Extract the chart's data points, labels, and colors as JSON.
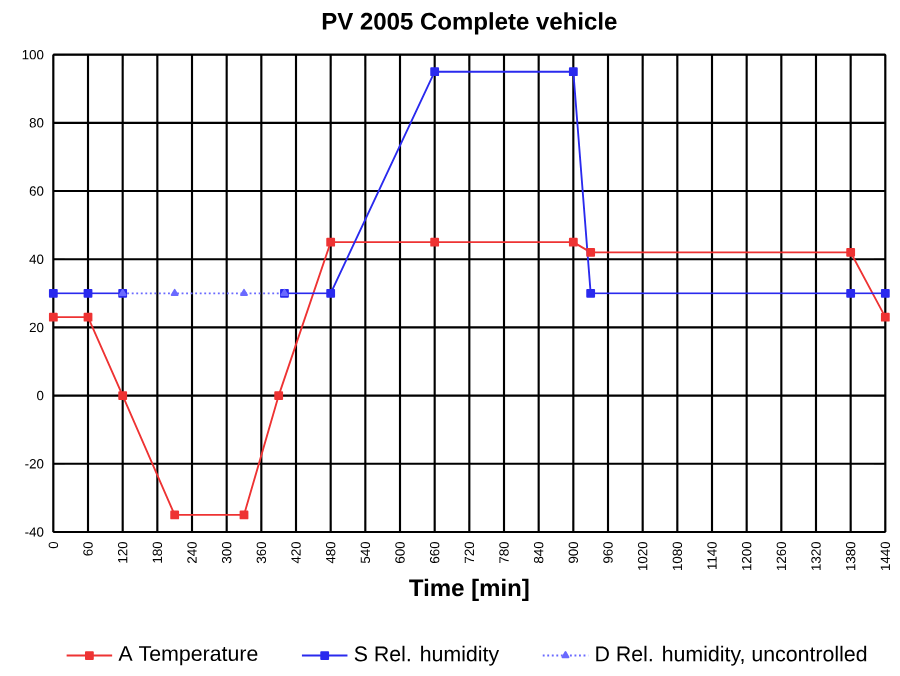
{
  "chart_data": {
    "type": "line",
    "title": "PV 2005 Complete vehicle",
    "xlabel": "Time [min]",
    "xlim": [
      0,
      1440
    ],
    "xticks": [
      0,
      60,
      120,
      180,
      240,
      300,
      360,
      420,
      480,
      540,
      600,
      660,
      720,
      780,
      840,
      900,
      960,
      1020,
      1080,
      1140,
      1200,
      1260,
      1320,
      1380,
      1440
    ],
    "ylim": [
      -40,
      100
    ],
    "yticks": [
      -40,
      -20,
      0,
      20,
      40,
      60,
      80,
      100
    ],
    "grid": true,
    "legend": "bottom",
    "series": [
      {
        "name": "A Temperature",
        "color": "#ee3333",
        "marker": "square",
        "line_style": "solid",
        "x": [
          0,
          60,
          120,
          210,
          330,
          390,
          480,
          660,
          900,
          930,
          1380,
          1440
        ],
        "values": [
          23,
          23,
          0,
          -35,
          -35,
          0,
          45,
          45,
          45,
          42,
          42,
          23
        ]
      },
      {
        "name": "S Rel. humidity",
        "color": "#2a2aee",
        "marker": "square",
        "line_style": "solid",
        "x": [
          0,
          60,
          120,
          210,
          400,
          480,
          660,
          900,
          930,
          1380,
          1440
        ],
        "values": [
          30,
          30,
          30,
          null,
          30,
          30,
          95,
          95,
          30,
          30,
          30
        ]
      },
      {
        "name": "D Rel. humidity, uncontrolled",
        "color": "#6a6aff",
        "marker": "triangle",
        "line_style": "dotted",
        "x": [
          120,
          210,
          330,
          400
        ],
        "values": [
          30,
          30,
          30,
          30
        ]
      }
    ]
  }
}
